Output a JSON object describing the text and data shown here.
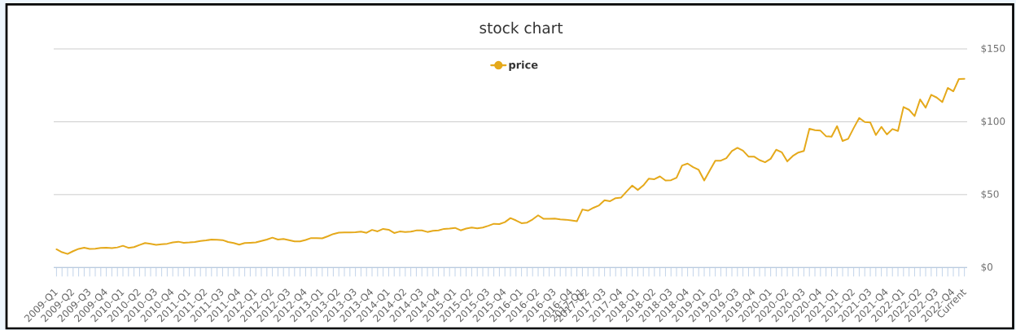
{
  "chart_data": {
    "type": "line",
    "title": "stock chart",
    "categories": [
      "2009-Q1",
      null,
      null,
      "2009-Q2",
      null,
      null,
      "2009-Q3",
      null,
      null,
      "2009-Q4",
      null,
      null,
      "2010-Q1",
      null,
      null,
      "2010-Q2",
      null,
      null,
      "2010-Q3",
      null,
      null,
      "2010-Q4",
      null,
      null,
      "2011-Q1",
      null,
      null,
      "2011-Q2",
      null,
      null,
      "2011-Q3",
      null,
      null,
      "2011-Q4",
      null,
      null,
      "2012-Q1",
      null,
      null,
      "2012-Q2",
      null,
      null,
      "2012-Q3",
      null,
      null,
      "2012-Q4",
      null,
      null,
      "2013-Q1",
      null,
      null,
      "2013-Q2",
      null,
      null,
      "2013-Q3",
      null,
      null,
      "2013-Q4",
      null,
      null,
      "2014-Q1",
      null,
      null,
      "2014-Q2",
      null,
      null,
      "2014-Q3",
      null,
      null,
      "2014-Q4",
      null,
      null,
      "2015-Q1",
      null,
      null,
      "2015-Q2",
      null,
      null,
      "2015-Q3",
      null,
      null,
      "2015-Q4",
      null,
      null,
      "2016-Q1",
      null,
      null,
      "2016-Q2",
      null,
      null,
      "2016-Q3",
      null,
      null,
      "2016-Q4",
      null,
      "2017-Q1",
      "2017-Q2",
      null,
      null,
      "2017-Q3",
      null,
      null,
      "2017-Q4",
      null,
      null,
      "2018-Q1",
      null,
      null,
      "2018-Q2",
      null,
      null,
      "2018-Q3",
      null,
      null,
      "2018-Q4",
      null,
      null,
      "2019-Q1",
      null,
      null,
      "2019-Q2",
      null,
      null,
      "2019-Q3",
      null,
      null,
      "2019-Q4",
      null,
      null,
      "2020-Q1",
      null,
      null,
      "2020-Q2",
      null,
      null,
      "2020-Q3",
      null,
      null,
      "2020-Q4",
      null,
      null,
      "2021-Q1",
      null,
      null,
      "2021-Q2",
      null,
      null,
      "2021-Q3",
      null,
      null,
      "2021-Q4",
      null,
      null,
      "2022-Q1",
      null,
      null,
      "2022-Q2",
      null,
      null,
      "2022-Q3",
      null,
      null,
      "2022-Q4",
      null,
      "Current"
    ],
    "series": [
      {
        "name": "price",
        "color": "#e5a91b",
        "values": [
          12.5,
          10.5,
          9.3,
          11.2,
          12.8,
          13.6,
          12.7,
          12.9,
          13.4,
          13.6,
          13.3,
          13.8,
          14.9,
          13.5,
          14.0,
          15.5,
          16.8,
          16.2,
          15.5,
          16.0,
          16.3,
          17.2,
          17.7,
          17.0,
          17.2,
          17.5,
          18.2,
          18.6,
          19.2,
          19.0,
          18.8,
          17.5,
          16.8,
          15.7,
          16.8,
          17.0,
          17.2,
          18.2,
          19.2,
          20.5,
          19.2,
          19.6,
          18.8,
          17.9,
          17.9,
          18.9,
          20.2,
          20.2,
          20.0,
          21.4,
          23.0,
          23.9,
          24.1,
          24.1,
          24.2,
          24.6,
          23.8,
          25.8,
          24.8,
          26.5,
          25.9,
          23.7,
          24.7,
          24.4,
          24.6,
          25.4,
          25.5,
          24.4,
          25.2,
          25.5,
          26.5,
          26.7,
          27.2,
          25.5,
          26.7,
          27.4,
          26.9,
          27.4,
          28.6,
          30.0,
          29.8,
          31.1,
          33.9,
          32.3,
          30.4,
          30.8,
          33.0,
          35.8,
          33.4,
          33.4,
          33.6,
          33.0,
          32.8,
          32.3,
          31.7,
          39.8,
          39.0,
          41.0,
          42.6,
          46.1,
          45.5,
          47.6,
          48.0,
          52.2,
          56.2,
          53.2,
          56.3,
          61.0,
          60.6,
          62.5,
          59.7,
          59.9,
          61.6,
          70.0,
          71.3,
          68.9,
          67.0,
          59.7,
          66.6,
          73.3,
          73.3,
          75.0,
          79.9,
          82.1,
          80.2,
          76.1,
          76.1,
          73.7,
          72.2,
          74.6,
          80.8,
          79.1,
          72.8,
          76.5,
          78.9,
          80.0,
          95.2,
          94.2,
          93.9,
          90.1,
          89.8,
          97.0,
          86.8,
          88.3,
          95.7,
          102.6,
          99.8,
          99.5,
          90.9,
          96.5,
          91.3,
          95.0,
          93.7,
          110.1,
          108.2,
          103.9,
          115.3,
          109.7,
          118.5,
          116.6,
          113.5,
          123.2,
          120.9,
          129.3,
          129.5
        ]
      }
    ],
    "ylim": [
      0,
      150
    ],
    "yticks": [
      {
        "value": 0,
        "label": "$0"
      },
      {
        "value": 50,
        "label": "$50"
      },
      {
        "value": 100,
        "label": "$100"
      },
      {
        "value": 150,
        "label": "$150"
      }
    ],
    "grid": "y",
    "legend": "top",
    "marker": "none",
    "line_style": "solid"
  }
}
